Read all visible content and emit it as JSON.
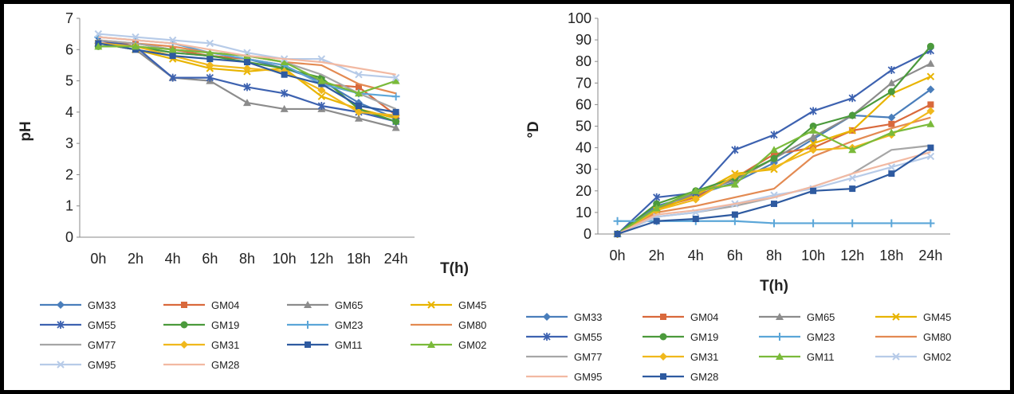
{
  "chart_data": [
    {
      "type": "line",
      "categories": [
        "0h",
        "2h",
        "4h",
        "6h",
        "8h",
        "10h",
        "12h",
        "18h",
        "24h"
      ],
      "xlabel": "T(h)",
      "ylabel": "pH",
      "ylim": [
        0,
        7
      ],
      "yticks": [
        0,
        1,
        2,
        3,
        4,
        5,
        6,
        7
      ],
      "grid": false,
      "legend": "bottom",
      "series": [
        {
          "name": "GM33",
          "color": "#4a7ebb",
          "marker": "diamond",
          "values": [
            6.2,
            6.1,
            5.9,
            5.8,
            5.7,
            5.4,
            5.0,
            4.3,
            3.8
          ]
        },
        {
          "name": "GM04",
          "color": "#d9693c",
          "marker": "square",
          "values": [
            6.2,
            6.2,
            6.0,
            5.8,
            5.7,
            5.5,
            4.9,
            4.8,
            3.9
          ]
        },
        {
          "name": "GM65",
          "color": "#8c8c8c",
          "marker": "triangle",
          "values": [
            6.2,
            6.0,
            5.1,
            5.0,
            4.3,
            4.1,
            4.1,
            3.8,
            3.5
          ]
        },
        {
          "name": "GM45",
          "color": "#e8b400",
          "marker": "x",
          "values": [
            6.2,
            6.0,
            5.7,
            5.4,
            5.3,
            5.4,
            4.5,
            4.1,
            3.8
          ]
        },
        {
          "name": "GM55",
          "color": "#3d62b0",
          "marker": "star",
          "values": [
            6.3,
            6.1,
            5.1,
            5.1,
            4.8,
            4.6,
            4.2,
            4.0,
            3.7
          ]
        },
        {
          "name": "GM19",
          "color": "#4b9a3c",
          "marker": "circle",
          "values": [
            6.1,
            6.1,
            5.9,
            5.8,
            5.6,
            5.4,
            5.1,
            4.1,
            3.7
          ]
        },
        {
          "name": "GM23",
          "color": "#5ba6d8",
          "marker": "plus",
          "values": [
            6.4,
            6.3,
            6.2,
            5.9,
            5.7,
            5.5,
            4.9,
            4.6,
            4.5
          ]
        },
        {
          "name": "GM80",
          "color": "#e38a52",
          "marker": "none",
          "values": [
            6.3,
            6.2,
            6.1,
            5.9,
            5.8,
            5.6,
            5.5,
            4.9,
            4.6
          ]
        },
        {
          "name": "GM77",
          "color": "#a6a6a6",
          "marker": "none",
          "values": [
            6.3,
            6.2,
            6.0,
            5.9,
            5.8,
            5.6,
            5.2,
            4.6,
            4.1
          ]
        },
        {
          "name": "GM31",
          "color": "#f0b81c",
          "marker": "diamond",
          "values": [
            6.2,
            6.1,
            5.8,
            5.5,
            5.4,
            5.3,
            4.7,
            4.0,
            3.9
          ]
        },
        {
          "name": "GM11",
          "color": "#2e5aa0",
          "marker": "square",
          "values": [
            6.2,
            6.0,
            5.8,
            5.7,
            5.6,
            5.2,
            4.9,
            4.2,
            4.0
          ]
        },
        {
          "name": "GM02",
          "color": "#7aba3a",
          "marker": "triangle",
          "values": [
            6.1,
            6.1,
            6.0,
            5.9,
            5.8,
            5.6,
            5.0,
            4.6,
            5.0
          ]
        },
        {
          "name": "GM95",
          "color": "#b7cbe8",
          "marker": "x",
          "values": [
            6.5,
            6.4,
            6.3,
            6.2,
            5.9,
            5.7,
            5.7,
            5.2,
            5.1
          ]
        },
        {
          "name": "GM28",
          "color": "#f2b9a2",
          "marker": "none",
          "values": [
            6.4,
            6.3,
            6.2,
            6.0,
            5.8,
            5.7,
            5.6,
            5.4,
            5.2
          ]
        }
      ]
    },
    {
      "type": "line",
      "categories": [
        "0h",
        "2h",
        "4h",
        "6h",
        "8h",
        "10h",
        "12h",
        "18h",
        "24h"
      ],
      "xlabel": "T(h)",
      "ylabel": "°D",
      "ylim": [
        0,
        100
      ],
      "yticks": [
        0,
        10,
        20,
        30,
        40,
        50,
        60,
        70,
        80,
        90,
        100
      ],
      "grid": false,
      "legend": "bottom",
      "series": [
        {
          "name": "GM33",
          "color": "#4a7ebb",
          "marker": "diamond",
          "values": [
            0,
            13,
            18,
            24,
            33,
            44,
            55,
            54,
            67
          ]
        },
        {
          "name": "GM04",
          "color": "#d9693c",
          "marker": "square",
          "values": [
            0,
            12,
            17,
            26,
            37,
            40,
            48,
            51,
            60
          ]
        },
        {
          "name": "GM65",
          "color": "#8c8c8c",
          "marker": "triangle",
          "values": [
            0,
            12,
            19,
            25,
            35,
            45,
            55,
            70,
            79
          ]
        },
        {
          "name": "GM45",
          "color": "#e8b400",
          "marker": "x",
          "values": [
            0,
            11,
            18,
            28,
            30,
            42,
            48,
            65,
            73
          ]
        },
        {
          "name": "GM55",
          "color": "#3d62b0",
          "marker": "star",
          "values": [
            0,
            17,
            19,
            39,
            46,
            57,
            63,
            76,
            85
          ]
        },
        {
          "name": "GM19",
          "color": "#4b9a3c",
          "marker": "circle",
          "values": [
            0,
            14,
            20,
            26,
            35,
            50,
            55,
            66,
            87
          ]
        },
        {
          "name": "GM23",
          "color": "#5ba6d8",
          "marker": "plus",
          "values": [
            6,
            6,
            6,
            6,
            5,
            5,
            5,
            5,
            5
          ]
        },
        {
          "name": "GM80",
          "color": "#e38a52",
          "marker": "none",
          "values": [
            0,
            10,
            13,
            17,
            21,
            36,
            43,
            49,
            54
          ]
        },
        {
          "name": "GM77",
          "color": "#a6a6a6",
          "marker": "none",
          "values": [
            0,
            8,
            10,
            13,
            17,
            22,
            28,
            39,
            41
          ]
        },
        {
          "name": "GM31",
          "color": "#f0b81c",
          "marker": "diamond",
          "values": [
            0,
            11,
            16,
            27,
            31,
            39,
            40,
            46,
            57
          ]
        },
        {
          "name": "GM11",
          "color": "#7aba3a",
          "marker": "triangle",
          "values": [
            0,
            12,
            20,
            23,
            39,
            48,
            39,
            47,
            51
          ]
        },
        {
          "name": "GM02",
          "color": "#b7cbe8",
          "marker": "x",
          "values": [
            0,
            8,
            10,
            14,
            18,
            21,
            26,
            31,
            36
          ]
        },
        {
          "name": "GM95",
          "color": "#f2b9a2",
          "marker": "none",
          "values": [
            0,
            9,
            11,
            14,
            17,
            22,
            28,
            33,
            38
          ]
        },
        {
          "name": "GM28",
          "color": "#2e5aa0",
          "marker": "square",
          "values": [
            0,
            6,
            7,
            9,
            14,
            20,
            21,
            28,
            40
          ]
        }
      ]
    }
  ]
}
